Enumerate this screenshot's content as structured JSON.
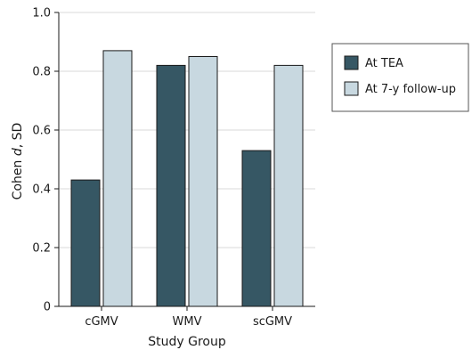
{
  "colors": {
    "series_tea": "#365764",
    "series_followup": "#c8d8e0",
    "bar_stroke": "#1a1a1a",
    "grid": "#d9d9d9",
    "axis": "#1a1a1a"
  },
  "chart_data": {
    "type": "bar",
    "categories": [
      "cGMV",
      "WMV",
      "scGMV"
    ],
    "series": [
      {
        "name": "At TEA",
        "values": [
          0.43,
          0.82,
          0.53
        ]
      },
      {
        "name": "At 7-y follow-up",
        "values": [
          0.87,
          0.85,
          0.82
        ]
      }
    ],
    "xlabel": "Study Group",
    "ylabel": "Cohen d, SD",
    "ylabel_parts": [
      "Cohen ",
      "d",
      ", SD"
    ],
    "ylim": [
      0,
      1.0
    ],
    "yticks": [
      "0",
      "0.2",
      "0.4",
      "0.6",
      "0.8",
      "1.0"
    ],
    "ytick_values": [
      0,
      0.2,
      0.4,
      0.6,
      0.8,
      1.0
    ],
    "grid": true,
    "legend_position": "right"
  }
}
